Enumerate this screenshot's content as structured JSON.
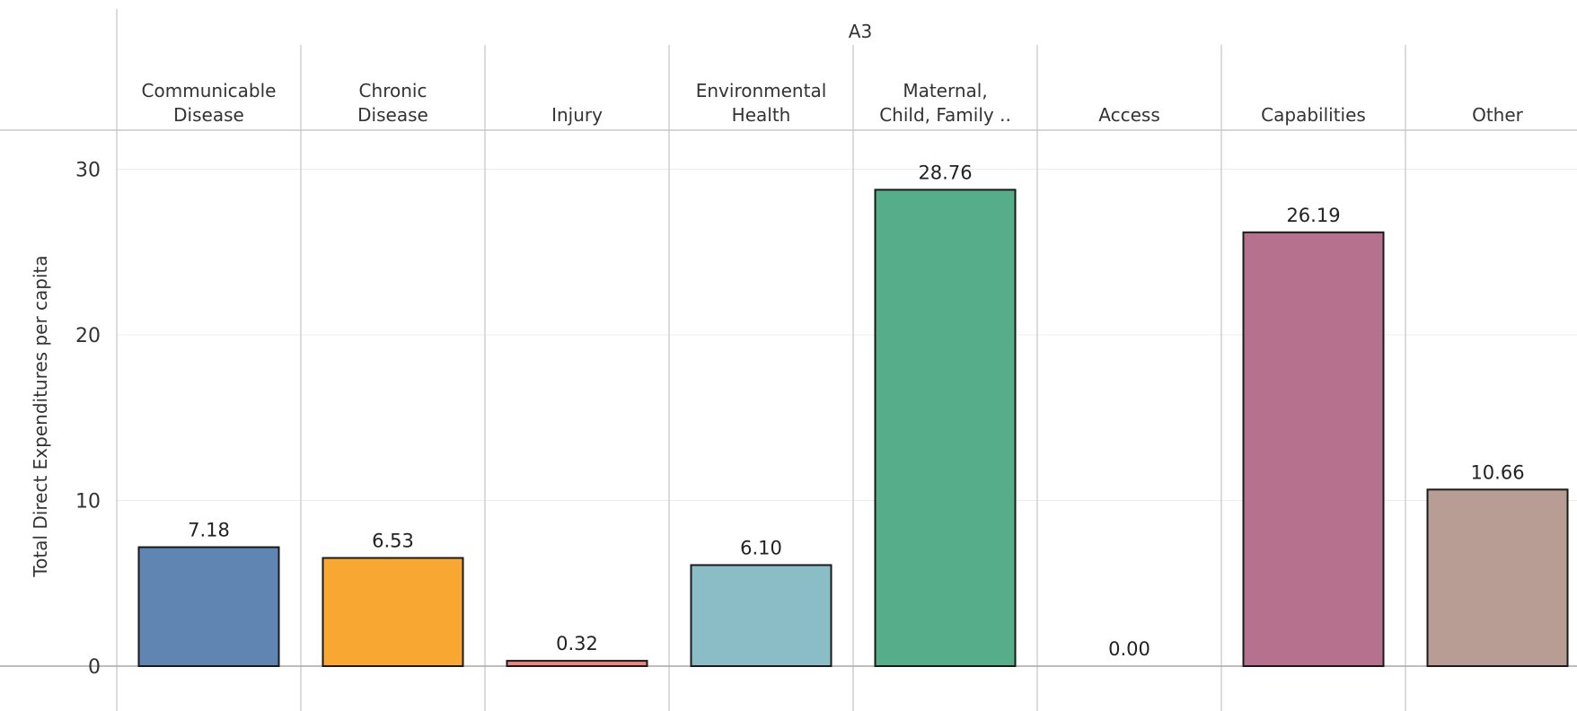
{
  "chart_data": {
    "type": "bar",
    "title": "A3",
    "ylabel": "Total Direct Expenditures per capita",
    "xlabel": "",
    "ylim": [
      0,
      32
    ],
    "yticks": [
      0,
      10,
      20,
      30
    ],
    "grid": true,
    "categories": [
      [
        "Communicable",
        "Disease"
      ],
      [
        "Chronic",
        "Disease"
      ],
      [
        "Injury"
      ],
      [
        "Environmental",
        "Health"
      ],
      [
        "Maternal,",
        "Child, Family .."
      ],
      [
        "Access"
      ],
      [
        "Capabilities"
      ],
      [
        "Other"
      ]
    ],
    "values": [
      7.18,
      6.53,
      0.32,
      6.1,
      28.76,
      0.0,
      26.19,
      10.66
    ],
    "value_labels": [
      "7.18",
      "6.53",
      "0.32",
      "6.10",
      "28.76",
      "0.00",
      "26.19",
      "10.66"
    ],
    "colors": [
      "#6185b3",
      "#f8a832",
      "#f0847f",
      "#8bbdc7",
      "#55ad8a",
      "#e0e0e0",
      "#b6718f",
      "#b79d94"
    ]
  }
}
